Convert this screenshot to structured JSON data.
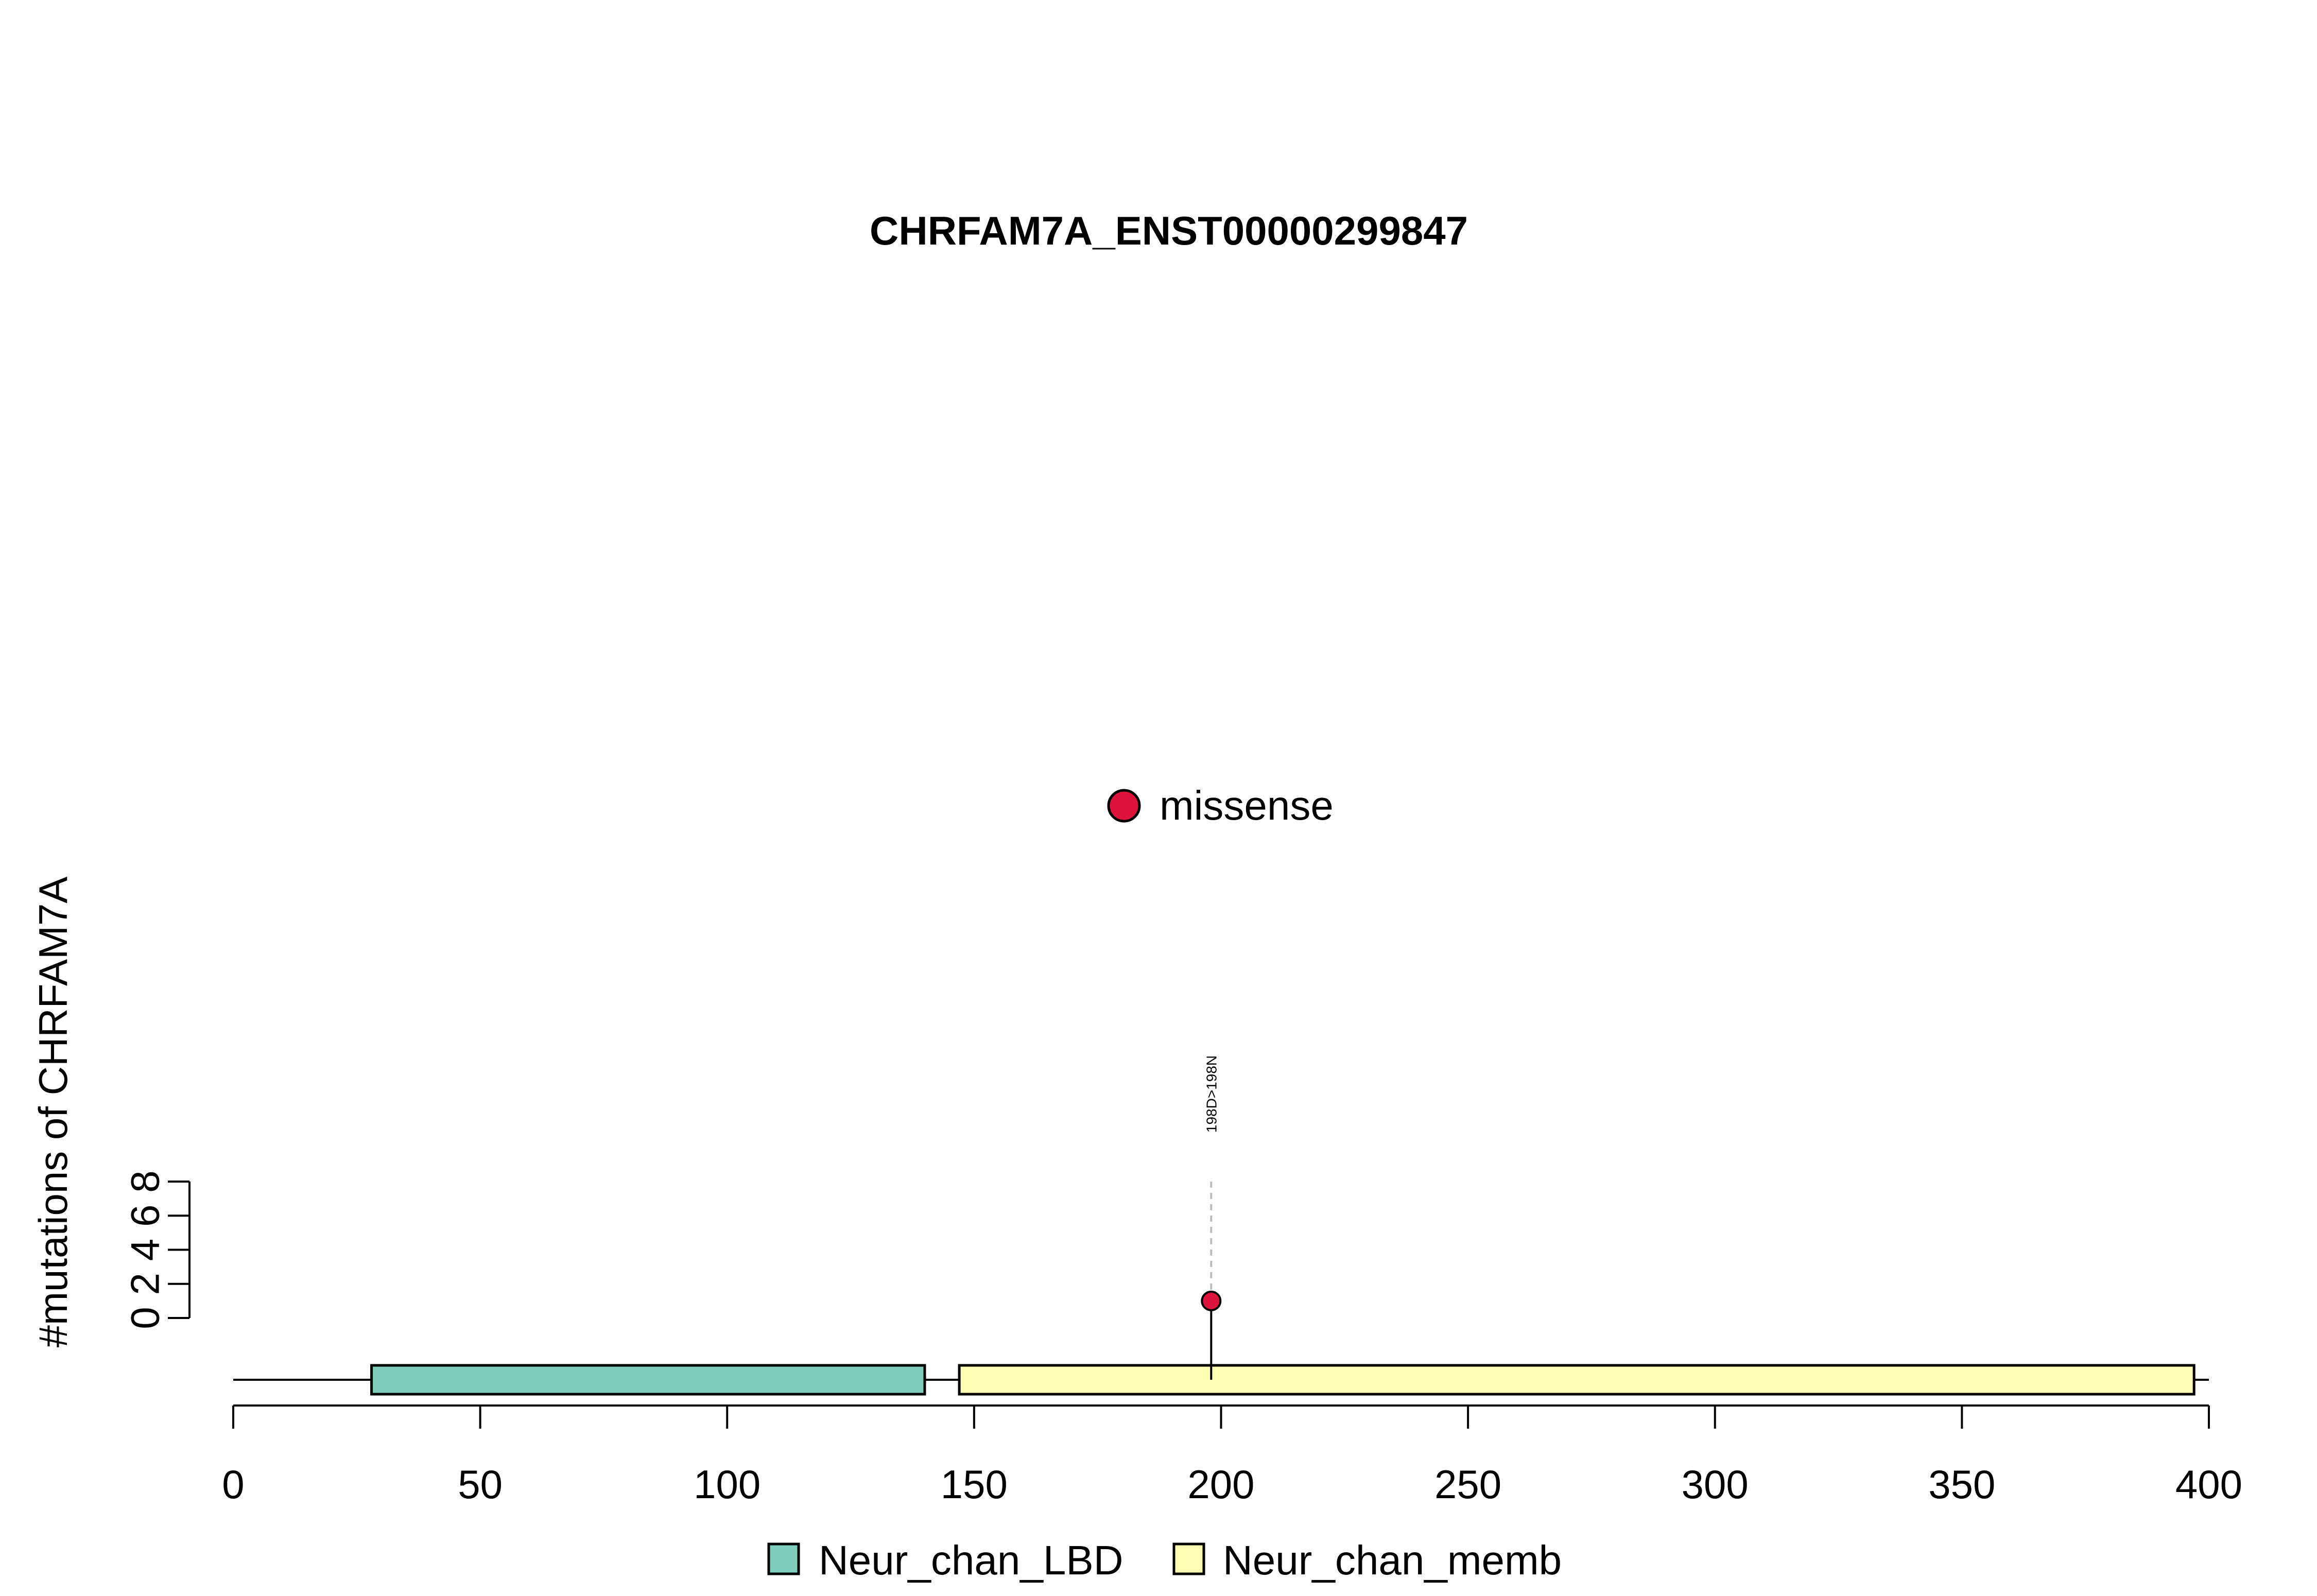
{
  "chart_data": {
    "type": "lollipop",
    "title": "CHRFAM7A_ENST00000299847",
    "xlabel": "",
    "ylabel": "#mutations of CHRFAM7A",
    "xlim": [
      0,
      400
    ],
    "ylim": [
      0,
      8
    ],
    "x_ticks": [
      0,
      50,
      100,
      150,
      200,
      250,
      300,
      350,
      400
    ],
    "y_ticks": [
      0,
      2,
      4,
      6,
      8
    ],
    "protein_length": 400,
    "domains": [
      {
        "name": "Neur_chan_LBD",
        "start": 28,
        "end": 140,
        "color": "#7fcdbb"
      },
      {
        "name": "Neur_chan_memb",
        "start": 147,
        "end": 397,
        "color": "#ffffb3"
      }
    ],
    "mutations": [
      {
        "position": 198,
        "count": 1,
        "label": "198D>198N",
        "type": "missense",
        "color": "#dc143c"
      }
    ],
    "mutation_legend": [
      {
        "name": "missense",
        "color": "#dc143c"
      }
    ],
    "domain_legend_placement": "bottom",
    "mutation_legend_placement": "center"
  }
}
